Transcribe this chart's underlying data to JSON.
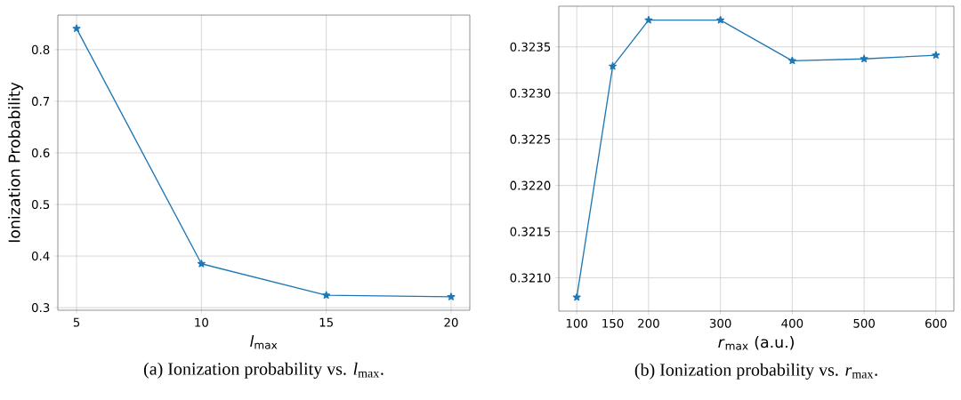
{
  "chart_data": [
    {
      "type": "line",
      "title": "(a) Ionization probability vs. *l*$_{max}$.",
      "xlabel": "*l*$_{max}$",
      "ylabel": "Ionization Probability",
      "x": [
        5,
        10,
        15,
        20
      ],
      "series": [
        {
          "color": "#1f77b4",
          "values": [
            0.841,
            0.385,
            0.324,
            0.321
          ]
        }
      ],
      "xlim": [
        4.25,
        20.75
      ],
      "xticks": [
        5,
        10,
        15,
        20
      ],
      "ylim": [
        0.295,
        0.867
      ],
      "yticks": [
        0.3,
        0.4,
        0.5,
        0.6,
        0.7,
        0.8
      ],
      "grid": true,
      "marker": "star",
      "line_style": "solid"
    },
    {
      "type": "line",
      "title": "(b) Ionization probability vs. *r*$_{max}$.",
      "xlabel": "*r*$_{max}$ (a.u.)",
      "x": [
        100,
        150,
        200,
        300,
        400,
        500,
        600
      ],
      "series": [
        {
          "color": "#1f77b4",
          "values": [
            0.32079,
            0.32329,
            0.32379,
            0.32379,
            0.32335,
            0.32337,
            0.32341
          ]
        }
      ],
      "xlim": [
        75,
        625
      ],
      "xticks": [
        100,
        150,
        200,
        300,
        400,
        500,
        600
      ],
      "ylim": [
        0.32064,
        0.32394
      ],
      "yticks": [
        {
          "value": 0.321,
          "label": "0.3210"
        },
        {
          "value": 0.3215,
          "label": "0.3215"
        },
        {
          "value": 0.322,
          "label": "0.3220"
        },
        {
          "value": 0.3225,
          "label": "0.3225"
        },
        {
          "value": 0.323,
          "label": "0.3230"
        },
        {
          "value": 0.3235,
          "label": "0.3235"
        }
      ],
      "grid": true,
      "marker": "star",
      "line_style": "solid"
    }
  ]
}
